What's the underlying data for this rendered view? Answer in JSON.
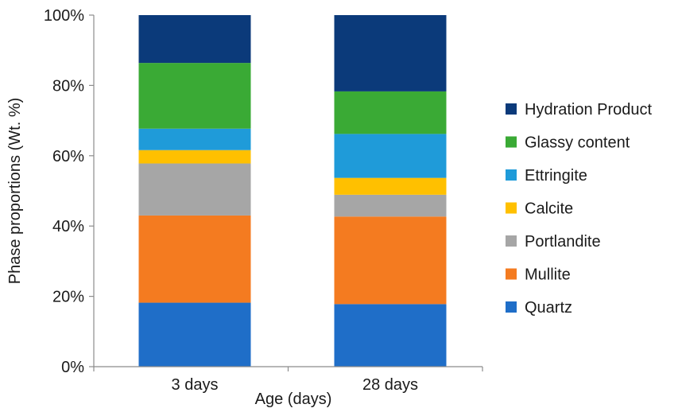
{
  "chart_data": {
    "type": "bar",
    "stacked": true,
    "normalized_percent": true,
    "title": "",
    "xlabel": "Age (days)",
    "ylabel": "Phase proportions (Wt. %)",
    "ylim": [
      0,
      100
    ],
    "yticks": [
      "0%",
      "20%",
      "40%",
      "60%",
      "80%",
      "100%"
    ],
    "categories": [
      "3 days",
      "28 days"
    ],
    "legend_position": "right",
    "series": [
      {
        "name": "Quartz",
        "color": "#1f6ec8",
        "values": [
          18.2,
          17.8
        ]
      },
      {
        "name": "Mullite",
        "color": "#f47b20",
        "values": [
          24.8,
          24.9
        ]
      },
      {
        "name": "Portlandite",
        "color": "#a6a6a6",
        "values": [
          14.8,
          6.2
        ]
      },
      {
        "name": "Calcite",
        "color": "#ffc000",
        "values": [
          3.8,
          4.8
        ]
      },
      {
        "name": "Ettringite",
        "color": "#1f9bd9",
        "values": [
          6.1,
          12.5
        ]
      },
      {
        "name": "Glassy content",
        "color": "#3aaa35",
        "values": [
          18.7,
          12.1
        ]
      },
      {
        "name": "Hydration Product",
        "color": "#0b3a7a",
        "values": [
          13.6,
          21.7
        ]
      }
    ]
  }
}
